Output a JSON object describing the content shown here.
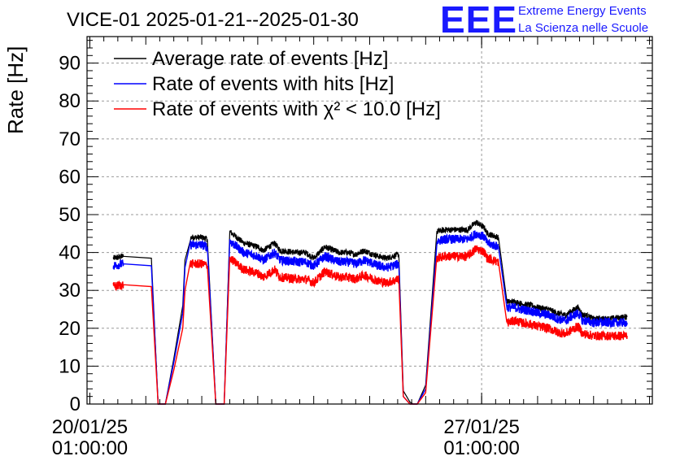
{
  "chart_data": {
    "type": "line",
    "title": "VICE-01 2025-01-21--2025-01-30",
    "xlabel": "",
    "ylabel": "Rate [Hz]",
    "ylim": [
      0,
      97
    ],
    "yticks": [
      0,
      10,
      20,
      30,
      40,
      50,
      60,
      70,
      80,
      90
    ],
    "x_unit": "days since 20/01/25 01:00:00",
    "xlim": [
      -0.05,
      10.05
    ],
    "grid": true,
    "legend_position": "top-left",
    "x_tick_labels": [
      {
        "x": 0,
        "date": "20/01/25",
        "time": "01:00:00"
      },
      {
        "x": 7,
        "date": "27/01/25",
        "time": "01:00:00"
      }
    ],
    "series": [
      {
        "name": "Average rate of events [Hz]",
        "color": "#000000",
        "x": [
          0.42,
          0.6,
          1.1,
          1.22,
          1.35,
          1.5,
          1.66,
          1.7,
          1.8,
          1.9,
          2.0,
          2.1,
          2.25,
          2.4,
          2.5,
          2.75,
          3.0,
          3.1,
          3.3,
          3.4,
          3.7,
          3.85,
          4.0,
          4.2,
          4.45,
          4.6,
          4.75,
          4.9,
          5.15,
          5.3,
          5.52,
          5.6,
          5.72,
          5.78,
          5.85,
          6.0,
          6.2,
          6.35,
          6.5,
          6.75,
          6.9,
          7.0,
          7.05,
          7.1,
          7.3,
          7.45,
          7.6,
          7.7,
          7.9,
          8.0,
          8.2,
          8.35,
          8.5,
          8.6,
          8.72,
          8.77,
          8.8,
          8.85,
          9.0,
          9.1,
          9.25,
          9.6
        ],
        "values": [
          38.5,
          39,
          38.5,
          0,
          0,
          12,
          26,
          38,
          44,
          44,
          44,
          43.5,
          0,
          0,
          45.5,
          42.5,
          41.5,
          40.5,
          42.5,
          40.5,
          40,
          40,
          38.5,
          41.5,
          40,
          40,
          39.5,
          40.5,
          39,
          38.5,
          39.5,
          3.5,
          0.5,
          0,
          0,
          5,
          45.5,
          46,
          46,
          46,
          48,
          47,
          46.5,
          45,
          44,
          27,
          27,
          26.5,
          26,
          25.5,
          25,
          24,
          23.5,
          24.5,
          25.5,
          24.5,
          23.5,
          23.5,
          22.5,
          22.5,
          22.5,
          23
        ]
      },
      {
        "name": "Rate of events with hits [Hz]",
        "color": "#0000ff",
        "x": [
          0.42,
          0.6,
          1.1,
          1.22,
          1.35,
          1.5,
          1.66,
          1.7,
          1.8,
          1.9,
          2.0,
          2.1,
          2.25,
          2.4,
          2.5,
          2.75,
          3.0,
          3.1,
          3.3,
          3.4,
          3.7,
          3.85,
          4.0,
          4.2,
          4.45,
          4.6,
          4.75,
          4.9,
          5.15,
          5.3,
          5.52,
          5.6,
          5.72,
          5.78,
          5.85,
          6.0,
          6.2,
          6.35,
          6.5,
          6.75,
          6.9,
          7.0,
          7.05,
          7.1,
          7.3,
          7.45,
          7.6,
          7.7,
          7.9,
          8.0,
          8.2,
          8.35,
          8.5,
          8.6,
          8.72,
          8.77,
          8.8,
          8.85,
          9.0,
          9.1,
          9.25,
          9.6
        ],
        "values": [
          36.5,
          37,
          36.5,
          0,
          0,
          11,
          24,
          36,
          42,
          42,
          42,
          41.5,
          0,
          0,
          43,
          40,
          39,
          38,
          40,
          38,
          37.5,
          37.5,
          36.5,
          39,
          37.5,
          37.5,
          37,
          38,
          36.5,
          36,
          37,
          2,
          0,
          0,
          0,
          4,
          43,
          43.5,
          43.5,
          43.5,
          45,
          44.5,
          44,
          42.5,
          41.5,
          25.5,
          25.5,
          25,
          24.5,
          24,
          23.5,
          22.5,
          22,
          23,
          24,
          23,
          22,
          22,
          21.5,
          21.5,
          21.5,
          21.5
        ]
      },
      {
        "name": "Rate of events with χ² < 10.0 [Hz]",
        "color": "#ff0000",
        "x": [
          0.42,
          0.6,
          1.1,
          1.22,
          1.35,
          1.5,
          1.66,
          1.7,
          1.8,
          1.9,
          2.0,
          2.1,
          2.25,
          2.4,
          2.5,
          2.75,
          3.0,
          3.1,
          3.3,
          3.4,
          3.7,
          3.85,
          4.0,
          4.2,
          4.45,
          4.6,
          4.75,
          4.9,
          5.15,
          5.3,
          5.52,
          5.6,
          5.72,
          5.78,
          5.85,
          6.0,
          6.2,
          6.35,
          6.5,
          6.75,
          6.9,
          7.0,
          7.05,
          7.1,
          7.3,
          7.45,
          7.6,
          7.7,
          7.9,
          8.0,
          8.2,
          8.35,
          8.5,
          8.6,
          8.72,
          8.77,
          8.8,
          8.85,
          9.0,
          9.1,
          9.25,
          9.6
        ],
        "values": [
          31,
          31.5,
          31,
          0,
          0,
          9,
          20,
          30,
          37,
          37,
          37,
          36.5,
          0,
          0,
          38.5,
          35.5,
          34.5,
          33.5,
          35.5,
          33.5,
          33,
          33,
          32,
          35,
          33.5,
          33.5,
          33,
          34,
          32.5,
          32,
          33,
          2,
          0,
          0,
          0,
          3,
          38.5,
          39,
          39,
          39,
          41,
          40.5,
          40,
          38.5,
          37.5,
          21.5,
          22,
          21.5,
          21,
          20.5,
          20,
          19,
          18.5,
          19.5,
          20.5,
          19.5,
          18.5,
          18.5,
          18,
          18,
          18,
          18
        ]
      }
    ]
  },
  "legend": {
    "entries": [
      "Average rate of events [Hz]",
      "Rate of events with hits [Hz]",
      "Rate of events with χ² < 10.0 [Hz]"
    ]
  },
  "logo": {
    "mark": "EEE",
    "line1": "Extreme Energy Events",
    "line2": "La Scienza nelle Scuole"
  }
}
